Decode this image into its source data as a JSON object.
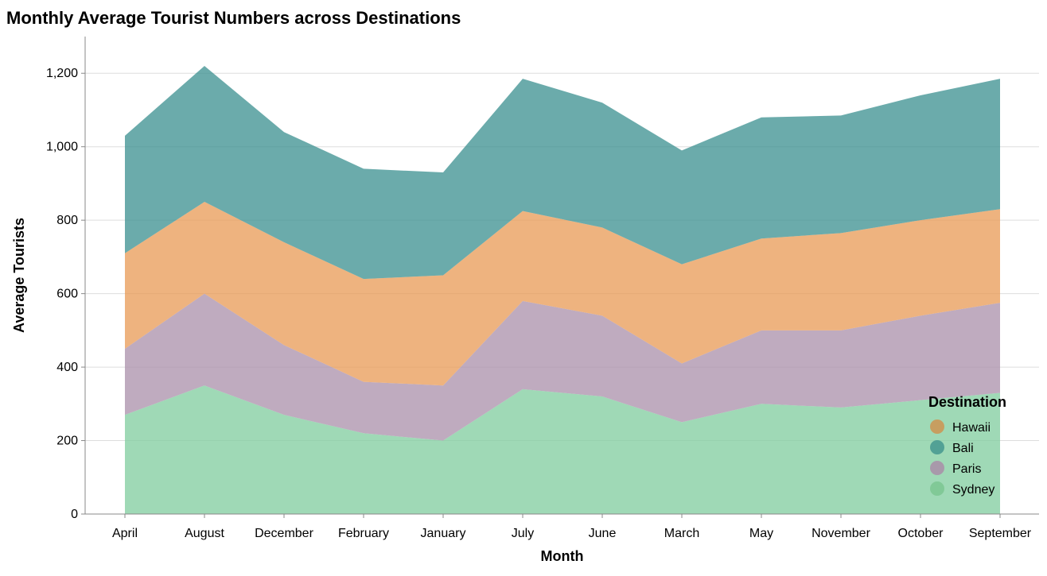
{
  "chart_data": {
    "type": "area",
    "stacked": true,
    "title": "Monthly Average Tourist Numbers across Destinations",
    "xlabel": "Month",
    "ylabel": "Average Tourists",
    "ylim": [
      0,
      1300
    ],
    "yticks": [
      0,
      200,
      400,
      600,
      800,
      1000,
      1200
    ],
    "ytick_labels": [
      "0",
      "200",
      "400",
      "600",
      "800",
      "1,000",
      "1,200"
    ],
    "grid": "horizontal",
    "legend_position": "bottom-right",
    "legend_title": "Destination",
    "categories": [
      "April",
      "August",
      "December",
      "February",
      "January",
      "July",
      "June",
      "March",
      "May",
      "November",
      "October",
      "September"
    ],
    "series": [
      {
        "name": "Sydney",
        "color": "#7fcc9e",
        "values": [
          270,
          350,
          270,
          220,
          200,
          340,
          320,
          250,
          300,
          290,
          310,
          330
        ]
      },
      {
        "name": "Paris",
        "color": "#a98fa9",
        "values": [
          180,
          250,
          190,
          140,
          150,
          240,
          220,
          160,
          200,
          210,
          230,
          245
        ]
      },
      {
        "name": "Hawaii",
        "color": "#e89a54",
        "values": [
          260,
          250,
          280,
          280,
          300,
          245,
          240,
          270,
          250,
          265,
          260,
          255
        ]
      },
      {
        "name": "Bali",
        "color": "#3a8f8f",
        "values": [
          320,
          370,
          300,
          300,
          280,
          360,
          340,
          310,
          330,
          320,
          340,
          355
        ]
      }
    ],
    "legend_order": [
      "Hawaii",
      "Bali",
      "Paris",
      "Sydney"
    ],
    "legend_colors": {
      "Hawaii": "#c99b5c",
      "Bali": "#4e9e94",
      "Paris": "#a996aa",
      "Sydney": "#7fc896"
    }
  }
}
